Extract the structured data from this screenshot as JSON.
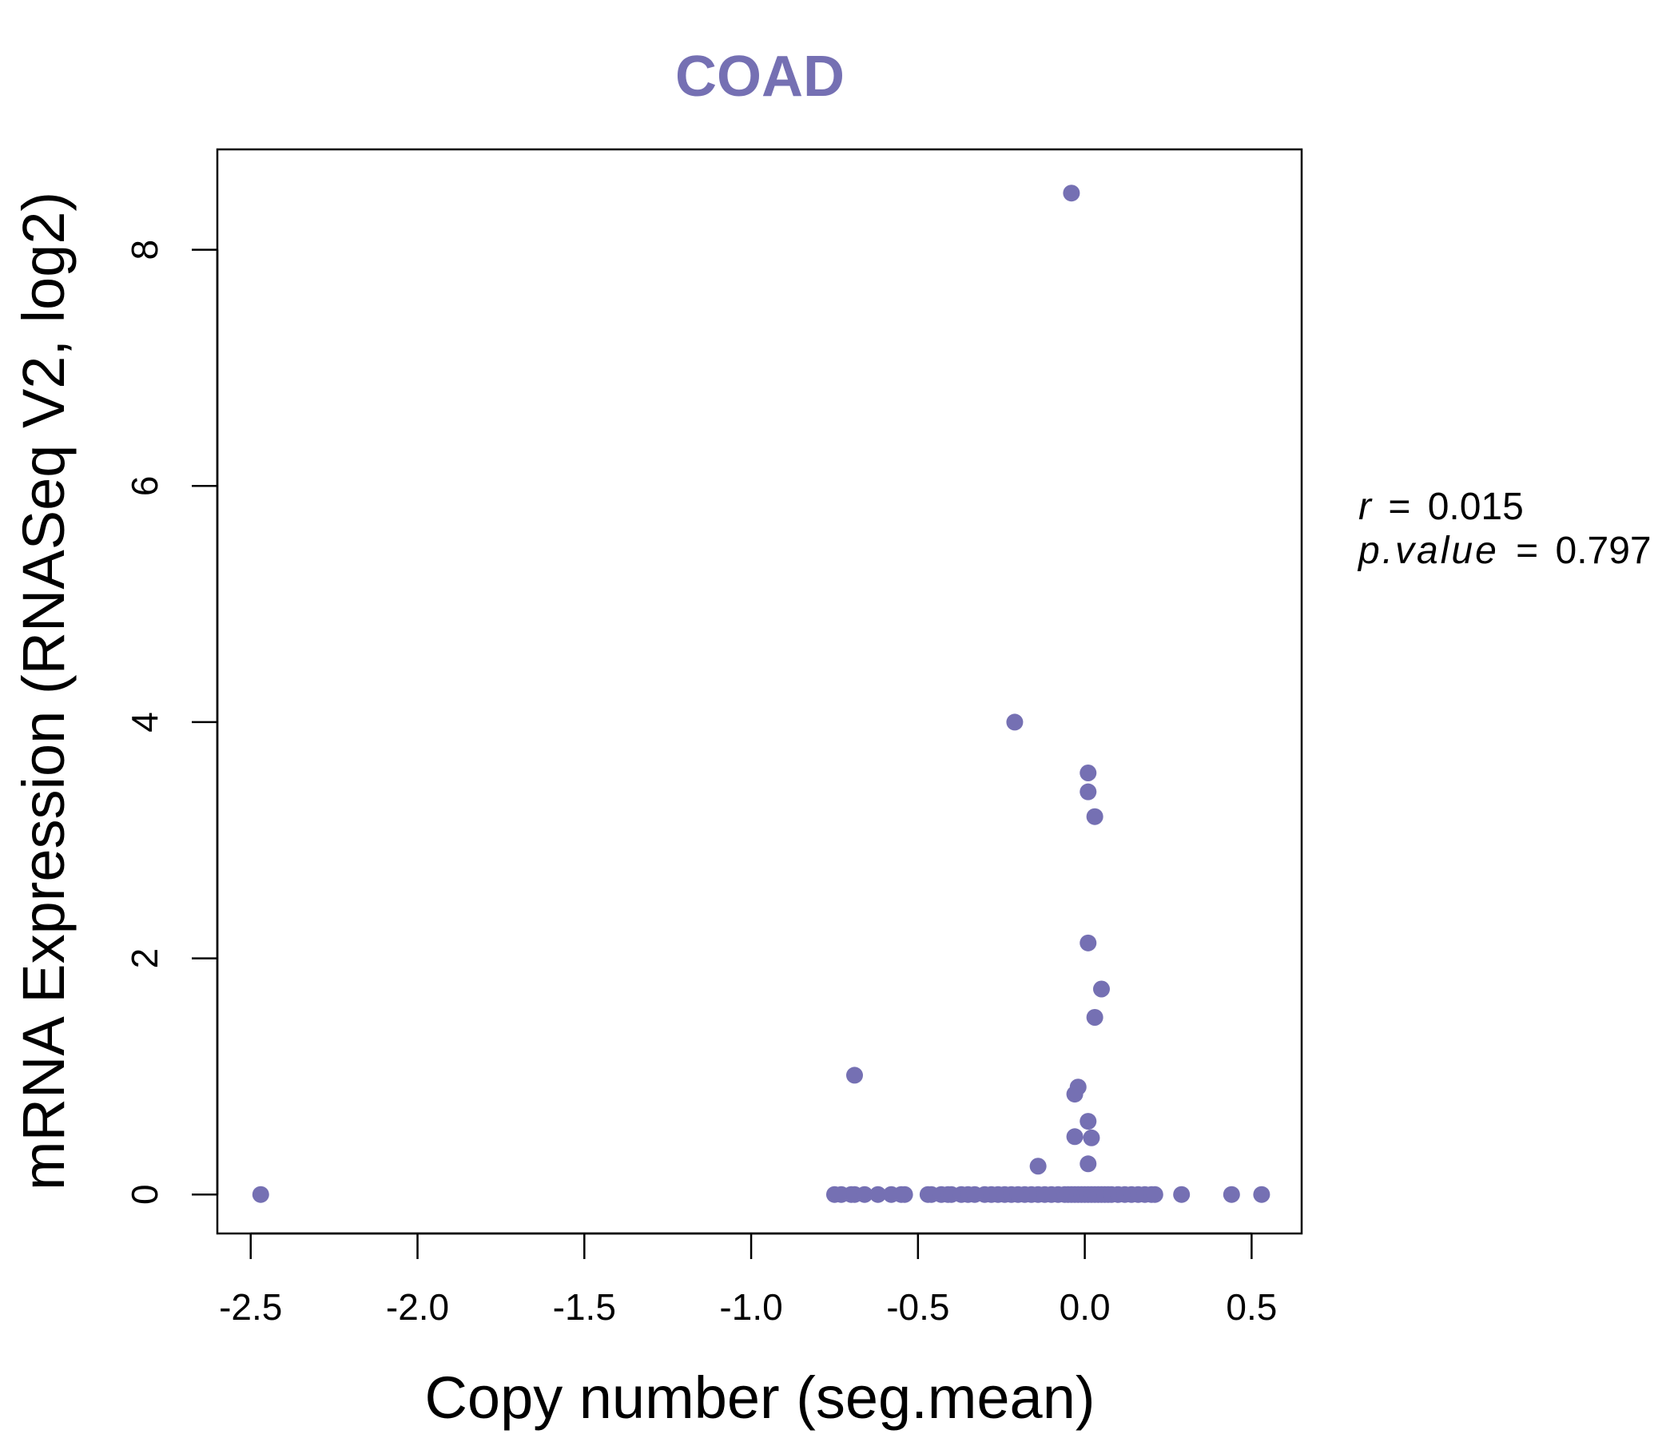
{
  "chart_data": {
    "type": "scatter",
    "title": "COAD",
    "xlabel": "Copy number (seg.mean)",
    "ylabel": "mRNA Expression (RNASeq V2, log2)",
    "xlim": [
      -2.6,
      0.65
    ],
    "ylim": [
      -0.33,
      8.85
    ],
    "x_ticks": [
      "-2.5",
      "-2.0",
      "-1.5",
      "-1.0",
      "-0.5",
      "0.0",
      "0.5"
    ],
    "y_ticks": [
      "0",
      "2",
      "4",
      "6",
      "8"
    ],
    "grid": false,
    "legend": "none",
    "colors": {
      "points": "#7570b3",
      "title": "#7570b3"
    },
    "annotation": {
      "r_label": "r",
      "r_value": "0.015",
      "p_label": "p.value",
      "p_value": "0.797"
    },
    "series": [
      {
        "points": [
          [
            -2.47,
            0
          ],
          [
            -0.75,
            0
          ],
          [
            -0.73,
            0
          ],
          [
            -0.7,
            0
          ],
          [
            -0.69,
            0
          ],
          [
            -0.66,
            0
          ],
          [
            -0.62,
            0
          ],
          [
            -0.58,
            0
          ],
          [
            -0.55,
            0
          ],
          [
            -0.54,
            0
          ],
          [
            -0.47,
            0
          ],
          [
            -0.46,
            0
          ],
          [
            -0.43,
            0
          ],
          [
            -0.41,
            0
          ],
          [
            -0.4,
            0
          ],
          [
            -0.37,
            0
          ],
          [
            -0.35,
            0
          ],
          [
            -0.33,
            0
          ],
          [
            -0.3,
            0
          ],
          [
            -0.28,
            0
          ],
          [
            -0.26,
            0
          ],
          [
            -0.24,
            0
          ],
          [
            -0.22,
            0
          ],
          [
            -0.2,
            0
          ],
          [
            -0.18,
            0
          ],
          [
            -0.16,
            0
          ],
          [
            -0.14,
            0
          ],
          [
            -0.12,
            0
          ],
          [
            -0.1,
            0
          ],
          [
            -0.08,
            0
          ],
          [
            -0.06,
            0
          ],
          [
            -0.05,
            0
          ],
          [
            -0.04,
            0
          ],
          [
            -0.03,
            0
          ],
          [
            -0.02,
            0
          ],
          [
            -0.01,
            0
          ],
          [
            0.0,
            0
          ],
          [
            0.01,
            0
          ],
          [
            0.02,
            0
          ],
          [
            0.03,
            0
          ],
          [
            0.04,
            0
          ],
          [
            0.05,
            0
          ],
          [
            0.06,
            0
          ],
          [
            0.07,
            0
          ],
          [
            0.08,
            0
          ],
          [
            0.1,
            0
          ],
          [
            0.12,
            0
          ],
          [
            0.14,
            0
          ],
          [
            0.16,
            0
          ],
          [
            0.18,
            0
          ],
          [
            0.2,
            0
          ],
          [
            0.21,
            0
          ],
          [
            0.29,
            0
          ],
          [
            0.44,
            0
          ],
          [
            0.53,
            0
          ],
          [
            -0.04,
            8.48
          ],
          [
            -0.21,
            4.0
          ],
          [
            0.01,
            3.57
          ],
          [
            0.01,
            3.41
          ],
          [
            0.03,
            3.2
          ],
          [
            0.01,
            2.13
          ],
          [
            0.05,
            1.74
          ],
          [
            0.03,
            1.5
          ],
          [
            -0.69,
            1.01
          ],
          [
            -0.02,
            0.91
          ],
          [
            -0.03,
            0.85
          ],
          [
            0.01,
            0.62
          ],
          [
            -0.03,
            0.49
          ],
          [
            0.02,
            0.48
          ],
          [
            -0.14,
            0.24
          ],
          [
            0.01,
            0.26
          ]
        ]
      }
    ]
  }
}
